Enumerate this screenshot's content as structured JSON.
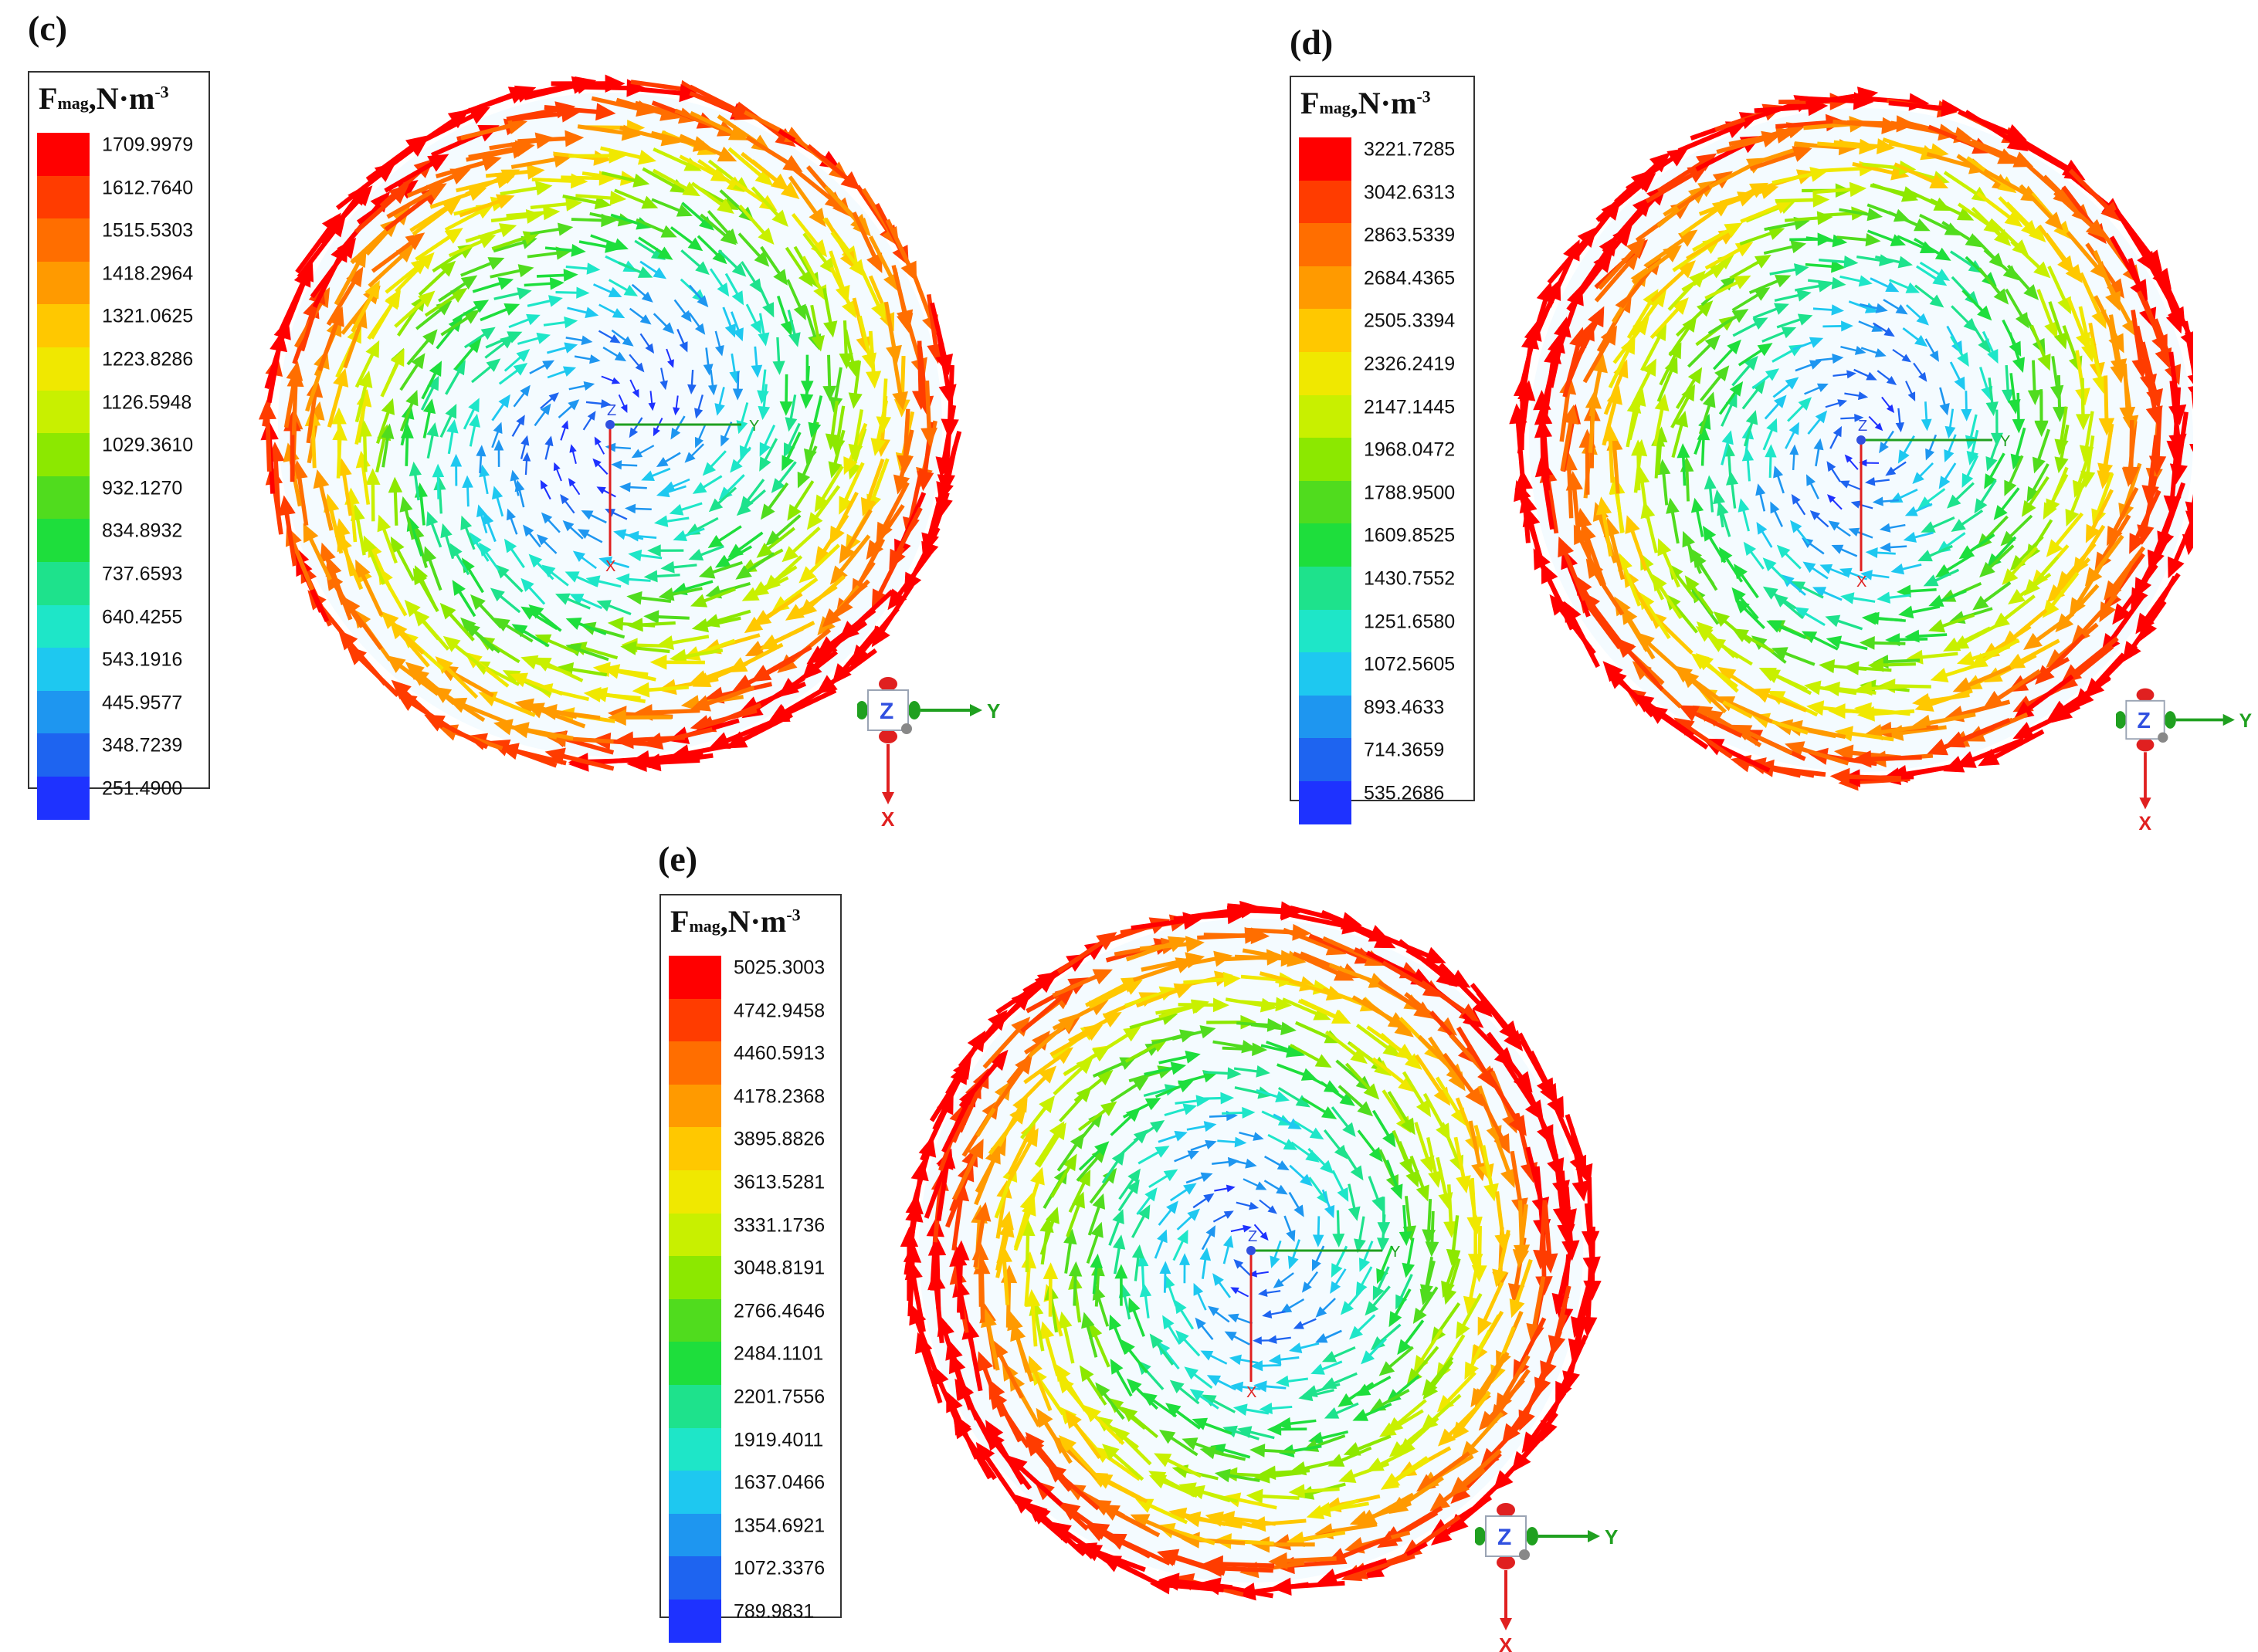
{
  "panels": [
    {
      "label": "(c)",
      "legend_title": {
        "main": "F",
        "sub": "mag",
        "unit": ",N·m",
        "exp": "-3"
      },
      "legend_values": [
        "1709.9979",
        "1612.7640",
        "1515.5303",
        "1418.2964",
        "1321.0625",
        "1223.8286",
        "1126.5948",
        "1029.3610",
        "932.1270",
        "834.8932",
        "737.6593",
        "640.4255",
        "543.1916",
        "445.9577",
        "348.7239",
        "251.4900"
      ],
      "center_axis_labels": {
        "x": "X",
        "y": "Y",
        "z": "Z"
      },
      "triad_labels": {
        "x": "X",
        "y": "Y",
        "z": "Z"
      },
      "swirl": 0.55,
      "inner_mix": 0.0
    },
    {
      "label": "(d)",
      "legend_title": {
        "main": "F",
        "sub": "mag",
        "unit": ",N·m",
        "exp": "-3"
      },
      "legend_values": [
        "3221.7285",
        "3042.6313",
        "2863.5339",
        "2684.4365",
        "2505.3394",
        "2326.2419",
        "2147.1445",
        "1968.0472",
        "1788.9500",
        "1609.8525",
        "1430.7552",
        "1251.6580",
        "1072.5605",
        "893.4633",
        "714.3659",
        "535.2686"
      ],
      "center_axis_labels": {
        "x": "X",
        "y": "Y",
        "z": "Z"
      },
      "triad_labels": {
        "x": "X",
        "y": "Y",
        "z": "Z"
      },
      "swirl": 0.35,
      "inner_mix": 0.15
    },
    {
      "label": "(e)",
      "legend_title": {
        "main": "F",
        "sub": "mag",
        "unit": ",N·m",
        "exp": "-3"
      },
      "legend_values": [
        "5025.3003",
        "4742.9458",
        "4460.5913",
        "4178.2368",
        "3895.8826",
        "3613.5281",
        "3331.1736",
        "3048.8191",
        "2766.4646",
        "2484.1101",
        "2201.7556",
        "1919.4011",
        "1637.0466",
        "1354.6921",
        "1072.3376",
        "789.9831"
      ],
      "center_axis_labels": {
        "x": "X",
        "y": "Y",
        "z": "Z"
      },
      "triad_labels": {
        "x": "X",
        "y": "Y",
        "z": "Z"
      },
      "swirl": 0.3,
      "inner_mix": 0.2
    }
  ],
  "colors": {
    "scale": [
      "#ff0000",
      "#ff3c00",
      "#ff6e00",
      "#ff9a00",
      "#ffc800",
      "#f0e800",
      "#c8f000",
      "#8ce800",
      "#50dc1e",
      "#1ede3c",
      "#1ee28c",
      "#1ee6c8",
      "#1ec8f0",
      "#1e96f0",
      "#1e64f0",
      "#1e32ff"
    ],
    "axis_x": "#e02020",
    "axis_y": "#20a020",
    "axis_z": "#3050e0"
  }
}
